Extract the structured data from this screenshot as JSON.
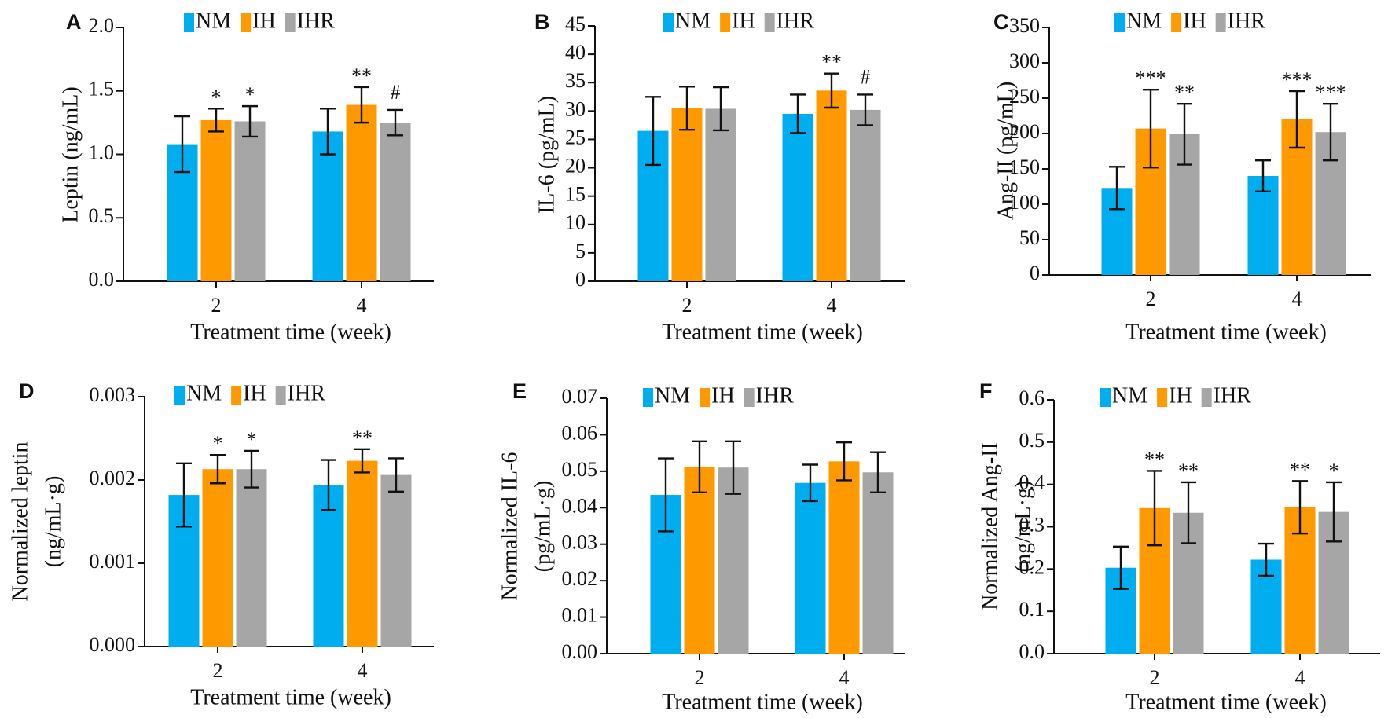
{
  "colors": {
    "NM": "#00AEEF",
    "IH": "#FF9900",
    "IHR": "#A6A6A6"
  },
  "chart_data": [
    {
      "panel": "A",
      "type": "bar",
      "categories": [
        "2",
        "4"
      ],
      "xlabel": "Treatment time (week)",
      "ylabel": [
        "Leptin (ng/mL)"
      ],
      "ylim": [
        0,
        2.0
      ],
      "yticks": [
        "0.0",
        "0.5",
        "1.0",
        "1.5",
        "2.0"
      ],
      "legend": [
        "NM",
        "IH",
        "IHR"
      ],
      "series": [
        {
          "name": "NM",
          "values": [
            1.08,
            1.18
          ],
          "errors": [
            0.22,
            0.18
          ],
          "labels": [
            "",
            ""
          ]
        },
        {
          "name": "IH",
          "values": [
            1.27,
            1.39
          ],
          "errors": [
            0.09,
            0.14
          ],
          "labels": [
            "*",
            "**"
          ]
        },
        {
          "name": "IHR",
          "values": [
            1.26,
            1.25
          ],
          "errors": [
            0.12,
            0.1
          ],
          "labels": [
            "*",
            "#"
          ]
        }
      ]
    },
    {
      "panel": "B",
      "type": "bar",
      "categories": [
        "2",
        "4"
      ],
      "xlabel": "Treatment time (week)",
      "ylabel": [
        "IL-6 (pg/mL)"
      ],
      "ylim": [
        0,
        45
      ],
      "yticks": [
        "0",
        "5",
        "10",
        "15",
        "20",
        "25",
        "30",
        "35",
        "40",
        "45"
      ],
      "legend": [
        "NM",
        "IH",
        "IHR"
      ],
      "series": [
        {
          "name": "NM",
          "values": [
            26.5,
            29.5
          ],
          "errors": [
            6.0,
            3.4
          ],
          "labels": [
            "",
            ""
          ]
        },
        {
          "name": "IH",
          "values": [
            30.5,
            33.6
          ],
          "errors": [
            3.8,
            3.0
          ],
          "labels": [
            "",
            "**"
          ]
        },
        {
          "name": "IHR",
          "values": [
            30.4,
            30.2
          ],
          "errors": [
            3.8,
            2.7
          ],
          "labels": [
            "",
            "#"
          ]
        }
      ]
    },
    {
      "panel": "C",
      "type": "bar",
      "categories": [
        "2",
        "4"
      ],
      "xlabel": "Treatment time (week)",
      "ylabel": [
        "Ang-II (pg/mL)"
      ],
      "ylim": [
        0,
        350
      ],
      "yticks": [
        "0",
        "50",
        "100",
        "150",
        "200",
        "250",
        "300",
        "350"
      ],
      "legend": [
        "NM",
        "IH",
        "IHR"
      ],
      "series": [
        {
          "name": "NM",
          "values": [
            123,
            140
          ],
          "errors": [
            30,
            22
          ],
          "labels": [
            "",
            ""
          ]
        },
        {
          "name": "IH",
          "values": [
            207,
            220
          ],
          "errors": [
            55,
            40
          ],
          "labels": [
            "***",
            "***"
          ]
        },
        {
          "name": "IHR",
          "values": [
            199,
            202
          ],
          "errors": [
            43,
            40
          ],
          "labels": [
            "**",
            "***"
          ]
        }
      ]
    },
    {
      "panel": "D",
      "type": "bar",
      "categories": [
        "2",
        "4"
      ],
      "xlabel": "Treatment time (week)",
      "ylabel": [
        "Normalized leptin",
        "(ng/mL·g)"
      ],
      "ylim": [
        0,
        0.003
      ],
      "yticks": [
        "0.000",
        "0.001",
        "0.002",
        "0.003"
      ],
      "legend": [
        "NM",
        "IH",
        "IHR"
      ],
      "series": [
        {
          "name": "NM",
          "values": [
            0.00182,
            0.00194
          ],
          "errors": [
            0.00038,
            0.0003
          ],
          "labels": [
            "",
            ""
          ]
        },
        {
          "name": "IH",
          "values": [
            0.00213,
            0.00223
          ],
          "errors": [
            0.00017,
            0.00014
          ],
          "labels": [
            "*",
            "**"
          ]
        },
        {
          "name": "IHR",
          "values": [
            0.00213,
            0.00206
          ],
          "errors": [
            0.00022,
            0.0002
          ],
          "labels": [
            "*",
            ""
          ]
        }
      ]
    },
    {
      "panel": "E",
      "type": "bar",
      "categories": [
        "2",
        "4"
      ],
      "xlabel": "Treatment time (week)",
      "ylabel": [
        "Normalized IL-6",
        "(pg/mL·g)"
      ],
      "ylim": [
        0,
        0.07
      ],
      "yticks": [
        "0.00",
        "0.01",
        "0.02",
        "0.03",
        "0.04",
        "0.05",
        "0.06",
        "0.07"
      ],
      "legend": [
        "NM",
        "IH",
        "IHR"
      ],
      "series": [
        {
          "name": "NM",
          "values": [
            0.0435,
            0.0468
          ],
          "errors": [
            0.01,
            0.005
          ],
          "labels": [
            "",
            ""
          ]
        },
        {
          "name": "IH",
          "values": [
            0.0512,
            0.0527
          ],
          "errors": [
            0.007,
            0.0052
          ],
          "labels": [
            "",
            ""
          ]
        },
        {
          "name": "IHR",
          "values": [
            0.051,
            0.0497
          ],
          "errors": [
            0.0072,
            0.0055
          ],
          "labels": [
            "",
            ""
          ]
        }
      ]
    },
    {
      "panel": "F",
      "type": "bar",
      "categories": [
        "2",
        "4"
      ],
      "xlabel": "Treatment time (week)",
      "ylabel": [
        "Normalized Ang-II",
        "(ng/mL·g)"
      ],
      "ylim": [
        0,
        0.6
      ],
      "yticks": [
        "0.0",
        "0.1",
        "0.2",
        "0.3",
        "0.4",
        "0.5",
        "0.6"
      ],
      "legend": [
        "NM",
        "IH",
        "IHR"
      ],
      "series": [
        {
          "name": "NM",
          "values": [
            0.203,
            0.222
          ],
          "errors": [
            0.05,
            0.038
          ],
          "labels": [
            "",
            ""
          ]
        },
        {
          "name": "IH",
          "values": [
            0.344,
            0.346
          ],
          "errors": [
            0.088,
            0.062
          ],
          "labels": [
            "**",
            "**"
          ]
        },
        {
          "name": "IHR",
          "values": [
            0.333,
            0.335
          ],
          "errors": [
            0.072,
            0.07
          ],
          "labels": [
            "**",
            "*"
          ]
        }
      ]
    }
  ]
}
